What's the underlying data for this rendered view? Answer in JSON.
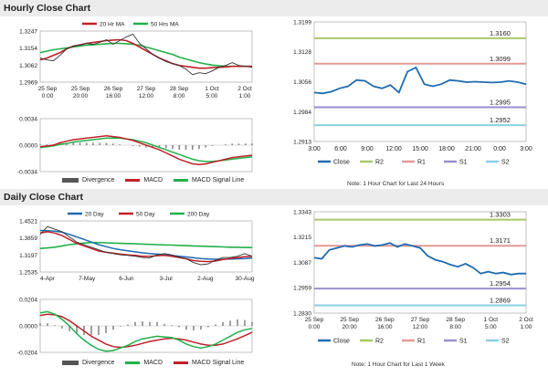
{
  "sections": {
    "hourly_title": "Hourly Close Chart",
    "daily_title": "Daily Close Chart"
  },
  "colors": {
    "close": "#1f6bb0",
    "ma20": "#c0202a",
    "ma50": "#22b04a",
    "r2": "#a8c86a",
    "r1": "#e29a96",
    "s1": "#9a8ed0",
    "s2": "#8ad0e4",
    "hist": "#888888"
  },
  "notes": {
    "hourly": "Note: 1 Hour Chart for Last 24 Hours",
    "daily": "Note: 1 Hour Chart for Last 1 Week"
  },
  "chart_data": [
    {
      "id": "hourly-price",
      "type": "line",
      "legend": [
        "20 Hr MA",
        "50 Hrs MA"
      ],
      "y_ticks": [
        "1.3247",
        "1.3154",
        "1.3062",
        "1.2969"
      ],
      "ylim": [
        1.2969,
        1.3247
      ],
      "x_ticks": [
        [
          "25 Sep",
          "0:00"
        ],
        [
          "25 Sep",
          "20:00"
        ],
        [
          "26 Sep",
          "16:00"
        ],
        [
          "27 Sep",
          "12:00"
        ],
        [
          "28 Sep",
          "8:00"
        ],
        [
          "1 Oct",
          "5:00"
        ],
        [
          "2 Oct",
          "1:00"
        ]
      ],
      "close": [
        1.31,
        1.309,
        1.3085,
        1.3115,
        1.315,
        1.3165,
        1.317,
        1.318,
        1.3175,
        1.3185,
        1.32,
        1.3175,
        1.3195,
        1.3215,
        1.323,
        1.318,
        1.315,
        1.312,
        1.31,
        1.308,
        1.307,
        1.306,
        1.304,
        1.301,
        1.302,
        1.3015,
        1.303,
        1.305,
        1.306,
        1.3075,
        1.306,
        1.3055,
        1.305
      ],
      "ma20": [
        1.309,
        1.31,
        1.3115,
        1.313,
        1.315,
        1.3165,
        1.3172,
        1.318,
        1.3185,
        1.319,
        1.3195,
        1.3198,
        1.32,
        1.3195,
        1.318,
        1.316,
        1.314,
        1.312,
        1.31,
        1.3085,
        1.307,
        1.306,
        1.3055,
        1.305,
        1.3045,
        1.3045,
        1.3048,
        1.305,
        1.3052,
        1.3055,
        1.3055,
        1.3055,
        1.3055
      ],
      "ma50": [
        1.313,
        1.3138,
        1.3145,
        1.315,
        1.3155,
        1.316,
        1.3165,
        1.317,
        1.3172,
        1.3175,
        1.3178,
        1.318,
        1.318,
        1.3178,
        1.3175,
        1.317,
        1.316,
        1.315,
        1.314,
        1.313,
        1.312,
        1.3105,
        1.3095,
        1.3085,
        1.3075,
        1.3068,
        1.3062,
        1.3058,
        1.3055,
        1.3055,
        1.3055,
        1.3055,
        1.3055
      ]
    },
    {
      "id": "hourly-macd",
      "type": "line",
      "legend": [
        "Divergence",
        "MACD",
        "MACD Signal Line"
      ],
      "y_ticks": [
        "0.0034",
        "0.0000",
        "-0.0034"
      ],
      "ylim": [
        -0.0034,
        0.0034
      ],
      "macd": [
        -0.0002,
        -0.0001,
        0.0,
        0.0003,
        0.0005,
        0.0007,
        0.0008,
        0.0009,
        0.001,
        0.0011,
        0.0012,
        0.0011,
        0.001,
        0.0008,
        0.0006,
        0.0003,
        0.0,
        -0.0003,
        -0.0006,
        -0.001,
        -0.0014,
        -0.0018,
        -0.0021,
        -0.0024,
        -0.0025,
        -0.0024,
        -0.0022,
        -0.002,
        -0.0018,
        -0.0016,
        -0.0015,
        -0.0014,
        -0.0013
      ],
      "signal": [
        -0.0003,
        -0.0002,
        -0.0001,
        0.0001,
        0.0002,
        0.0004,
        0.0005,
        0.0006,
        0.0007,
        0.0008,
        0.0009,
        0.0009,
        0.0009,
        0.0008,
        0.0007,
        0.0005,
        0.0003,
        0.0,
        -0.0003,
        -0.0006,
        -0.0009,
        -0.0012,
        -0.0015,
        -0.0018,
        -0.002,
        -0.0021,
        -0.0021,
        -0.002,
        -0.0019,
        -0.0018,
        -0.0017,
        -0.0016,
        -0.0015
      ]
    },
    {
      "id": "hourly-pivot",
      "type": "line",
      "y_ticks": [
        "1.3199",
        "1.3128",
        "1.3056",
        "1.2984",
        "1.2913"
      ],
      "ylim": [
        1.2913,
        1.3199
      ],
      "x_ticks": [
        "3:00",
        "6:00",
        "9:00",
        "12:00",
        "15:00",
        "18:00",
        "21:00",
        "0:00",
        "3:00"
      ],
      "series": [
        {
          "name": "Close",
          "values": [
            1.303,
            1.3028,
            1.3032,
            1.304,
            1.3045,
            1.306,
            1.3058,
            1.3045,
            1.304,
            1.3048,
            1.303,
            1.308,
            1.309,
            1.305,
            1.3045,
            1.305,
            1.306,
            1.3058,
            1.3055,
            1.3056,
            1.3055,
            1.3054,
            1.3055,
            1.3058,
            1.3055,
            1.305
          ]
        }
      ],
      "levels": [
        {
          "name": "R2",
          "value": 1.316,
          "label": "1.3160"
        },
        {
          "name": "R1",
          "value": 1.3099,
          "label": "1.3099"
        },
        {
          "name": "S1",
          "value": 1.2995,
          "label": "1.2995"
        },
        {
          "name": "S2",
          "value": 1.2952,
          "label": "1.2952"
        }
      ],
      "legend": [
        "Close",
        "R2",
        "R1",
        "S1",
        "S2"
      ]
    },
    {
      "id": "daily-price",
      "type": "line",
      "legend": [
        "20 Day",
        "50 Day",
        "200 Day"
      ],
      "y_ticks": [
        "1.4521",
        "1.3859",
        "1.3197",
        "1.2535"
      ],
      "ylim": [
        1.2535,
        1.4521
      ],
      "x_ticks": [
        "4-Apr",
        "7-May",
        "6-Jun",
        "3-Jul",
        "2-Aug",
        "30-Aug"
      ],
      "close": [
        1.4,
        1.43,
        1.42,
        1.41,
        1.39,
        1.37,
        1.36,
        1.35,
        1.34,
        1.33,
        1.325,
        1.32,
        1.318,
        1.315,
        1.31,
        1.308,
        1.32,
        1.325,
        1.32,
        1.312,
        1.305,
        1.29,
        1.282,
        1.285,
        1.3,
        1.31,
        1.31,
        1.315,
        1.325,
        1.315
      ],
      "ma20": [
        1.405,
        1.41,
        1.405,
        1.395,
        1.38,
        1.365,
        1.355,
        1.345,
        1.335,
        1.33,
        1.327,
        1.323,
        1.32,
        1.318,
        1.315,
        1.315,
        1.317,
        1.318,
        1.315,
        1.31,
        1.305,
        1.298,
        1.295,
        1.294,
        1.296,
        1.302,
        1.306,
        1.31,
        1.313,
        1.315
      ],
      "ma50": [
        1.415,
        1.414,
        1.412,
        1.408,
        1.4,
        1.39,
        1.38,
        1.37,
        1.36,
        1.352,
        1.345,
        1.34,
        1.336,
        1.332,
        1.328,
        1.325,
        1.323,
        1.321,
        1.318,
        1.315,
        1.312,
        1.309,
        1.306,
        1.304,
        1.303,
        1.303,
        1.304,
        1.305,
        1.306,
        1.308
      ],
      "ma200": [
        1.345,
        1.347,
        1.35,
        1.355,
        1.36,
        1.363,
        1.366,
        1.368,
        1.368,
        1.367,
        1.366,
        1.365,
        1.364,
        1.363,
        1.362,
        1.361,
        1.36,
        1.359,
        1.358,
        1.357,
        1.356,
        1.355,
        1.354,
        1.353,
        1.352,
        1.351,
        1.35,
        1.3495,
        1.349,
        1.3485
      ]
    },
    {
      "id": "daily-macd",
      "type": "line",
      "legend": [
        "Divergence",
        "MACD",
        "MACD Signal Line"
      ],
      "y_ticks": [
        "0.0204",
        "0.0000",
        "-0.0204"
      ],
      "ylim": [
        -0.0204,
        0.0204
      ],
      "macd": [
        0.01,
        0.011,
        0.009,
        0.005,
        0.0,
        -0.006,
        -0.011,
        -0.015,
        -0.018,
        -0.0195,
        -0.019,
        -0.017,
        -0.015,
        -0.012,
        -0.01,
        -0.009,
        -0.008,
        -0.0085,
        -0.009,
        -0.011,
        -0.014,
        -0.016,
        -0.017,
        -0.016,
        -0.014,
        -0.011,
        -0.008,
        -0.005,
        -0.003,
        -0.002
      ],
      "signal": [
        0.008,
        0.009,
        0.0085,
        0.007,
        0.004,
        0.0,
        -0.004,
        -0.008,
        -0.011,
        -0.014,
        -0.016,
        -0.0165,
        -0.016,
        -0.015,
        -0.0135,
        -0.012,
        -0.011,
        -0.01,
        -0.0095,
        -0.01,
        -0.011,
        -0.0125,
        -0.014,
        -0.015,
        -0.015,
        -0.014,
        -0.012,
        -0.01,
        -0.0075,
        -0.005
      ]
    },
    {
      "id": "daily-pivot",
      "type": "line",
      "y_ticks": [
        "1.3343",
        "1.3215",
        "1.3087",
        "1.2959",
        "1.2830"
      ],
      "ylim": [
        1.283,
        1.3343
      ],
      "x_ticks": [
        [
          "25 Sep",
          "0:00"
        ],
        [
          "25 Sep",
          "20:00"
        ],
        [
          "26 Sep",
          "16:00"
        ],
        [
          "27 Sep",
          "12:00"
        ],
        [
          "28 Sep",
          "8:00"
        ],
        [
          "1 Oct",
          "5:00"
        ],
        [
          "2 Oct",
          "1:00"
        ]
      ],
      "series": [
        {
          "name": "Close",
          "values": [
            1.311,
            1.3105,
            1.315,
            1.316,
            1.317,
            1.3165,
            1.3175,
            1.318,
            1.317,
            1.3175,
            1.3185,
            1.3165,
            1.318,
            1.317,
            1.316,
            1.312,
            1.31,
            1.309,
            1.3075,
            1.3065,
            1.308,
            1.306,
            1.303,
            1.304,
            1.303,
            1.3035,
            1.3025,
            1.303,
            1.303
          ]
        }
      ],
      "levels": [
        {
          "name": "R2",
          "value": 1.3303,
          "label": "1.3303"
        },
        {
          "name": "R1",
          "value": 1.3171,
          "label": "1.3171"
        },
        {
          "name": "S1",
          "value": 1.2954,
          "label": "1.2954"
        },
        {
          "name": "S2",
          "value": 1.2869,
          "label": "1.2869"
        }
      ],
      "legend": [
        "Close",
        "R2",
        "R1",
        "S1",
        "S2"
      ]
    }
  ]
}
